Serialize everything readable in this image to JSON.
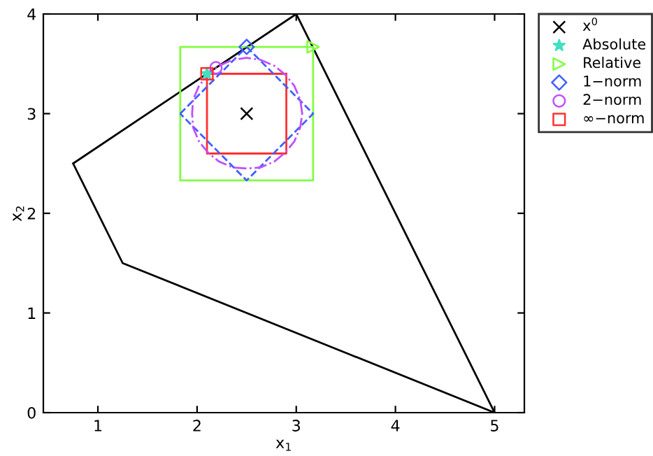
{
  "chart_data": {
    "type": "line",
    "xlabel": "x$_{1}$",
    "ylabel": "x$_{2}$",
    "xlim": [
      0.45,
      5.3
    ],
    "ylim": [
      0,
      4
    ],
    "xticks": [
      1,
      2,
      3,
      4,
      5
    ],
    "yticks": [
      0,
      1,
      2,
      3,
      4
    ],
    "grid": false,
    "legend": "top right",
    "series": [
      {
        "color": "#000000",
        "line_style": "solid",
        "x": [
          0.75,
          3,
          5,
          1.25,
          0.75,
          3
        ],
        "values": [
          2.5,
          4,
          0,
          1.5,
          2.5,
          4
        ]
      },
      {
        "color": "#80ff40",
        "line_style": "solid",
        "x": [
          1.83,
          3.17,
          3.17,
          1.83,
          1.83,
          3.17
        ],
        "values": [
          3.67,
          3.67,
          2.33,
          2.33,
          3.67,
          3.67
        ]
      },
      {
        "color": "#ff3030",
        "line_style": "solid",
        "x": [
          2.1,
          2.9,
          2.9,
          2.1,
          2.1,
          2.9
        ],
        "values": [
          3.4,
          3.4,
          2.6,
          2.6,
          3.4,
          3.4
        ]
      },
      {
        "color": "#4060ff",
        "line_style": "dashed",
        "x": [
          2.5,
          3.17,
          2.5,
          1.83
        ],
        "values": [
          3.67,
          3,
          2.33,
          3
        ]
      },
      {
        "color": "#4060ff",
        "line_style": "dashed",
        "x": [
          1.83,
          2.5
        ],
        "values": [
          3,
          3.67
        ]
      },
      {
        "color": "#c050ff",
        "line_style": "dashdot",
        "x": [
          3.06,
          3.04,
          2.98,
          2.89,
          2.78,
          2.64,
          2.5,
          2.36,
          2.22,
          2.11,
          2.02,
          1.96,
          1.95,
          1.96,
          2.02,
          2.11,
          2.22,
          2.36,
          2.5,
          2.64,
          2.78,
          2.89,
          2.98,
          3.04,
          3.06,
          3.04
        ],
        "values": [
          3,
          3.14,
          3.28,
          3.39,
          3.48,
          3.54,
          3.56,
          3.54,
          3.48,
          3.39,
          3.28,
          3.14,
          3,
          2.86,
          2.72,
          2.61,
          2.52,
          2.46,
          2.45,
          2.46,
          2.52,
          2.61,
          2.72,
          2.86,
          3,
          3.14
        ]
      },
      {
        "type": "scatter",
        "name": "x$^{0}$",
        "color": "#000000",
        "marker": "cross",
        "x": [
          2.5
        ],
        "values": [
          3
        ]
      },
      {
        "type": "scatter",
        "name": "Absolute",
        "color": "#40e0c0",
        "marker": "star",
        "x": [
          2.1
        ],
        "values": [
          3.4
        ]
      },
      {
        "type": "scatter",
        "name": "Relative",
        "color": "#80ff40",
        "marker": "triangle",
        "x": [
          3.17
        ],
        "values": [
          3.67
        ]
      },
      {
        "type": "scatter",
        "name": "1−norm",
        "color": "#4060ff",
        "marker": "diamond",
        "x": [
          2.5
        ],
        "values": [
          3.67
        ]
      },
      {
        "type": "scatter",
        "name": "2−norm",
        "color": "#c050ff",
        "marker": "circle",
        "x": [
          2.19
        ],
        "values": [
          3.46
        ]
      },
      {
        "type": "scatter",
        "name": "∞−norm",
        "color": "#ff3030",
        "marker": "square",
        "x": [
          2.1
        ],
        "values": [
          3.4
        ]
      }
    ]
  }
}
